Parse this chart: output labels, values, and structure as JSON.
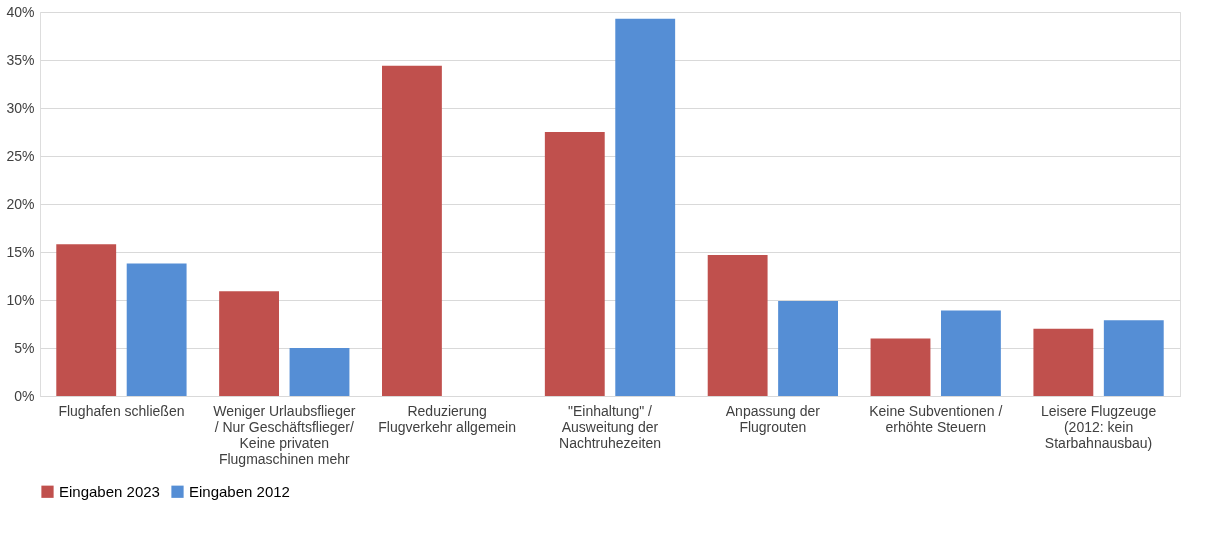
{
  "chart_data": {
    "type": "bar",
    "categories": [
      "Flughafen schließen",
      "Weniger Urlaubsflieger\n/ Nur Geschäftsflieger/\nKeine privaten\nFlugmaschinen mehr",
      "Reduzierung\nFlugverkehr allgemein",
      "\"Einhaltung\" /\nAusweitung der\nNachtruhezeiten",
      "Anpassung der\nFlugrouten",
      "Keine Subventionen /\nerhöhte Steuern",
      "Leisere Flugzeuge\n(2012: kein\nStarbahnausbau)"
    ],
    "series": [
      {
        "name": "Eingaben 2023",
        "color": "#c0504d",
        "values": [
          15.8,
          10.9,
          34.4,
          27.5,
          14.7,
          6.0,
          7.0
        ]
      },
      {
        "name": "Eingaben 2012",
        "color": "#558ed5",
        "values": [
          13.8,
          5.0,
          null,
          39.3,
          9.9,
          8.9,
          7.9
        ]
      }
    ],
    "ylim": [
      0,
      40
    ],
    "yticks": [
      {
        "value": 0,
        "label": "0%"
      },
      {
        "value": 5,
        "label": "5%"
      },
      {
        "value": 10,
        "label": "10%"
      },
      {
        "value": 15,
        "label": "15%"
      },
      {
        "value": 20,
        "label": "20%"
      },
      {
        "value": 25,
        "label": "25%"
      },
      {
        "value": 30,
        "label": "30%"
      },
      {
        "value": 35,
        "label": "35%"
      },
      {
        "value": 40,
        "label": "40%"
      }
    ],
    "grid": "y",
    "legend": "bottom"
  }
}
